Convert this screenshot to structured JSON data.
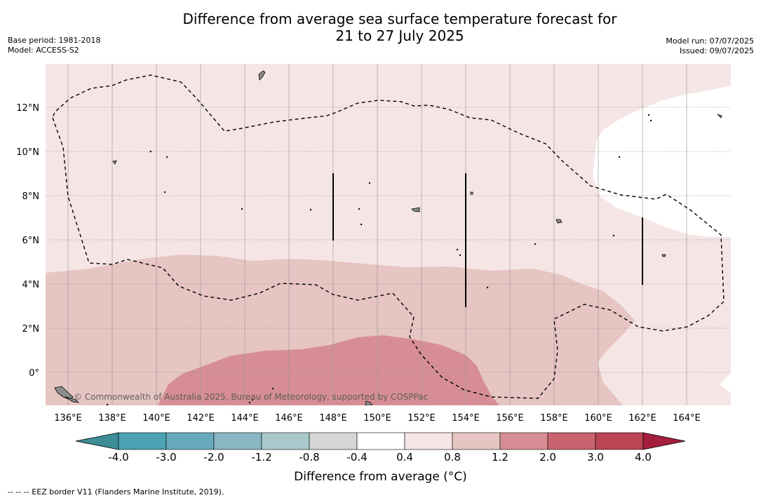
{
  "title": {
    "line1": "Difference from average sea surface temperature forecast for",
    "line2": "21 to 27 July 2025"
  },
  "meta_left": {
    "base_period": "Base period: 1981-2018",
    "model": "Model: ACCESS-S2"
  },
  "meta_right": {
    "model_run": "Model run: 07/07/2025",
    "issued": "Issued: 09/07/2025"
  },
  "map": {
    "lat_ticks": [
      "12°N",
      "10°N",
      "8°N",
      "6°N",
      "4°N",
      "2°N",
      "0°"
    ],
    "lon_ticks": [
      "136°E",
      "138°E",
      "140°E",
      "142°E",
      "144°E",
      "146°E",
      "148°E",
      "150°E",
      "152°E",
      "154°E",
      "156°E",
      "158°E",
      "160°E",
      "162°E",
      "164°E"
    ],
    "watermark": "© Commonwealth of Australia 2025, Bureau of Meteorology, supported by COSPPac",
    "colors": {
      "band_0_4_0_8": "#f5e6e5",
      "band_0_8_1_2": "#e6c5c2",
      "band_1_2_2_0": "#d68e94",
      "band_neg_0_4_0_4": "#ffffff",
      "land": "#8c8c8c"
    }
  },
  "colorbar": {
    "labels": [
      "-4.0",
      "-3.0",
      "-2.0",
      "-1.2",
      "-0.8",
      "-0.4",
      "0.4",
      "0.8",
      "1.2",
      "2.0",
      "3.0",
      "4.0"
    ],
    "colors": [
      "#3d8c96",
      "#4aa2b4",
      "#67aabb",
      "#88b6c2",
      "#a9c9cc",
      "#d4d7d6",
      "#ffffff",
      "#f5e6e5",
      "#e6c5c2",
      "#d68e94",
      "#c9636f",
      "#bb4554",
      "#a51f3c"
    ],
    "title": "Difference from average (°C)"
  },
  "footer": "--  --  -- EEZ border V11 (Flanders Marine Institute, 2019)."
}
